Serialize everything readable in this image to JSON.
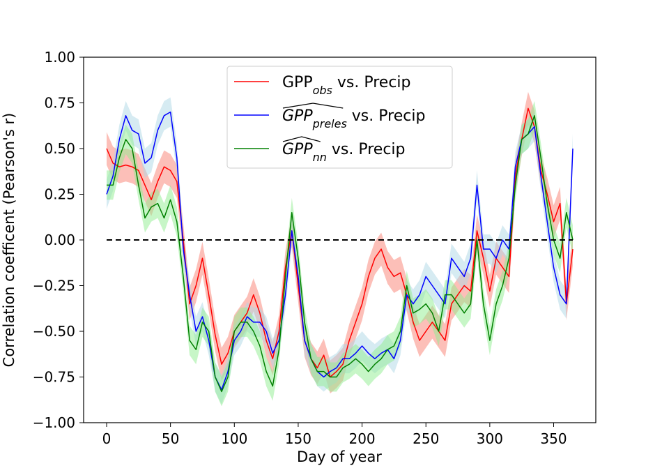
{
  "chart_data": {
    "type": "line",
    "xlabel": "Day of year",
    "ylabel": "Correlation coefficent (Pearson's r)",
    "xlim": [
      -18,
      383
    ],
    "ylim": [
      -1.0,
      1.0
    ],
    "xticks": [
      0,
      50,
      100,
      150,
      200,
      250,
      300,
      350
    ],
    "yticks": [
      -1.0,
      -0.75,
      -0.5,
      -0.25,
      0.0,
      0.25,
      0.5,
      0.75,
      1.0
    ],
    "xtick_labels": [
      "0",
      "50",
      "100",
      "150",
      "200",
      "250",
      "300",
      "350"
    ],
    "ytick_labels": [
      "−1.00",
      "−0.75",
      "−0.50",
      "−0.25",
      "0.00",
      "0.25",
      "0.50",
      "0.75",
      "1.00"
    ],
    "grid": false,
    "legend_position": "top-center",
    "reference_line": {
      "y": 0.0,
      "x_start": 0,
      "x_end": 365,
      "style": "dashed",
      "color": "#000000"
    },
    "series": [
      {
        "name": "GPP_obs vs. Precip",
        "legend_label": {
          "base": "GPP",
          "sub": "obs",
          "suffix": " vs. Precip"
        },
        "color": "#ff0000",
        "band_color": "#fa8072",
        "band_halfwidth": 0.09,
        "x": [
          0,
          5,
          10,
          15,
          20,
          25,
          30,
          35,
          40,
          45,
          50,
          55,
          60,
          65,
          70,
          75,
          80,
          85,
          90,
          95,
          100,
          105,
          110,
          115,
          120,
          125,
          130,
          135,
          140,
          145,
          150,
          155,
          160,
          165,
          170,
          175,
          180,
          185,
          190,
          195,
          200,
          205,
          210,
          215,
          220,
          225,
          230,
          235,
          240,
          245,
          250,
          255,
          260,
          265,
          270,
          275,
          280,
          285,
          290,
          295,
          300,
          305,
          310,
          315,
          320,
          325,
          330,
          335,
          340,
          345,
          350,
          355,
          360,
          365
        ],
        "y": [
          0.5,
          0.42,
          0.4,
          0.41,
          0.4,
          0.38,
          0.3,
          0.22,
          0.32,
          0.4,
          0.38,
          0.32,
          0.0,
          -0.35,
          -0.25,
          -0.1,
          -0.3,
          -0.52,
          -0.68,
          -0.62,
          -0.5,
          -0.45,
          -0.4,
          -0.3,
          -0.4,
          -0.55,
          -0.65,
          -0.5,
          -0.15,
          0.05,
          -0.25,
          -0.55,
          -0.65,
          -0.7,
          -0.63,
          -0.75,
          -0.72,
          -0.68,
          -0.55,
          -0.45,
          -0.35,
          -0.2,
          -0.1,
          -0.05,
          -0.15,
          -0.2,
          -0.18,
          -0.3,
          -0.45,
          -0.55,
          -0.5,
          -0.45,
          -0.5,
          -0.55,
          -0.35,
          -0.3,
          -0.25,
          -0.28,
          0.05,
          -0.1,
          -0.28,
          -0.1,
          -0.15,
          -0.2,
          0.35,
          0.55,
          0.72,
          0.62,
          0.38,
          0.25,
          0.1,
          0.2,
          -0.35,
          -0.05
        ]
      },
      {
        "name": "GPP_preles vs. Precip",
        "legend_label": {
          "base": "GPP",
          "sub": "preles",
          "suffix": " vs. Precip"
        },
        "color": "#0000ff",
        "band_color": "#add8e6",
        "band_halfwidth": 0.08,
        "x": [
          0,
          5,
          10,
          15,
          20,
          25,
          30,
          35,
          40,
          45,
          50,
          55,
          60,
          65,
          70,
          75,
          80,
          85,
          90,
          95,
          100,
          105,
          110,
          115,
          120,
          125,
          130,
          135,
          140,
          145,
          150,
          155,
          160,
          165,
          170,
          175,
          180,
          185,
          190,
          195,
          200,
          205,
          210,
          215,
          220,
          225,
          230,
          235,
          240,
          245,
          250,
          255,
          260,
          265,
          270,
          275,
          280,
          285,
          290,
          295,
          300,
          305,
          310,
          315,
          320,
          325,
          330,
          335,
          340,
          345,
          350,
          355,
          360,
          365
        ],
        "y": [
          0.25,
          0.35,
          0.55,
          0.68,
          0.6,
          0.58,
          0.42,
          0.45,
          0.6,
          0.68,
          0.7,
          0.45,
          -0.05,
          -0.3,
          -0.5,
          -0.42,
          -0.55,
          -0.75,
          -0.82,
          -0.72,
          -0.55,
          -0.5,
          -0.42,
          -0.45,
          -0.45,
          -0.5,
          -0.62,
          -0.55,
          -0.3,
          0.05,
          -0.2,
          -0.55,
          -0.65,
          -0.72,
          -0.75,
          -0.72,
          -0.7,
          -0.65,
          -0.65,
          -0.62,
          -0.58,
          -0.62,
          -0.65,
          -0.62,
          -0.6,
          -0.65,
          -0.55,
          -0.3,
          -0.35,
          -0.3,
          -0.2,
          -0.25,
          -0.3,
          -0.35,
          -0.1,
          -0.15,
          -0.2,
          -0.1,
          0.3,
          -0.05,
          -0.05,
          -0.1,
          0.0,
          -0.05,
          0.4,
          0.55,
          0.58,
          0.62,
          0.35,
          0.1,
          -0.15,
          -0.3,
          -0.35,
          0.5
        ]
      },
      {
        "name": "GPP_nn vs. Precip",
        "legend_label": {
          "base": "GPP",
          "sub": "nn",
          "suffix": " vs. Precip"
        },
        "color": "#008000",
        "band_color": "#90ee90",
        "band_halfwidth": 0.08,
        "x": [
          0,
          5,
          10,
          15,
          20,
          25,
          30,
          35,
          40,
          45,
          50,
          55,
          60,
          65,
          70,
          75,
          80,
          85,
          90,
          95,
          100,
          105,
          110,
          115,
          120,
          125,
          130,
          135,
          140,
          145,
          150,
          155,
          160,
          165,
          170,
          175,
          180,
          185,
          190,
          195,
          200,
          205,
          210,
          215,
          220,
          225,
          230,
          235,
          240,
          245,
          250,
          255,
          260,
          265,
          270,
          275,
          280,
          285,
          290,
          295,
          300,
          305,
          310,
          315,
          320,
          325,
          330,
          335,
          340,
          345,
          350,
          355,
          360,
          365
        ],
        "y": [
          0.3,
          0.3,
          0.45,
          0.55,
          0.5,
          0.3,
          0.12,
          0.18,
          0.2,
          0.12,
          0.22,
          0.1,
          -0.2,
          -0.55,
          -0.6,
          -0.45,
          -0.5,
          -0.75,
          -0.83,
          -0.75,
          -0.5,
          -0.45,
          -0.45,
          -0.5,
          -0.58,
          -0.72,
          -0.8,
          -0.6,
          -0.2,
          0.15,
          -0.1,
          -0.45,
          -0.65,
          -0.72,
          -0.72,
          -0.75,
          -0.75,
          -0.7,
          -0.68,
          -0.65,
          -0.68,
          -0.72,
          -0.68,
          -0.65,
          -0.6,
          -0.58,
          -0.5,
          -0.25,
          -0.4,
          -0.38,
          -0.35,
          -0.4,
          -0.5,
          -0.3,
          -0.3,
          -0.35,
          -0.4,
          -0.35,
          0.0,
          -0.35,
          -0.55,
          -0.35,
          -0.25,
          -0.1,
          0.3,
          0.55,
          0.58,
          0.68,
          0.45,
          0.2,
          0.0,
          -0.1,
          0.15,
          0.0
        ]
      }
    ]
  }
}
